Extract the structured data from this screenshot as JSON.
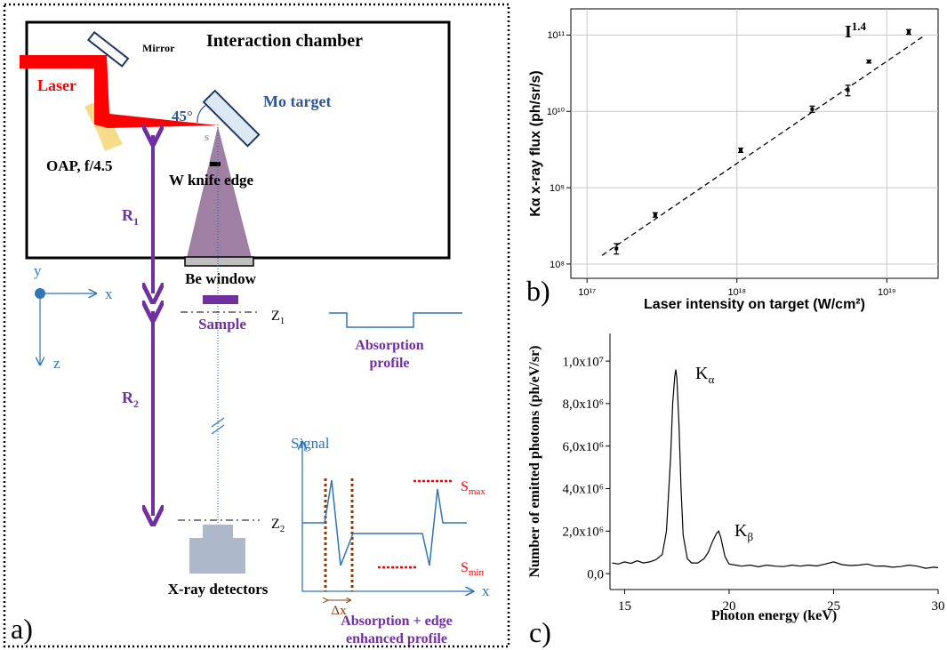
{
  "diagram": {
    "title": "Interaction chamber",
    "mirror": "Mirror",
    "laser": "Laser",
    "target": "Mo target",
    "angle": "45°",
    "source": "s",
    "oap": "OAP, f/4.5",
    "knife": "W knife edge",
    "r1": {
      "text": "R",
      "sub": "1"
    },
    "r2": {
      "text": "R",
      "sub": "2"
    },
    "window": "Be window",
    "sample": "Sample",
    "z1": {
      "text": "Z",
      "sub": "1"
    },
    "z2": {
      "text": "Z",
      "sub": "2"
    },
    "profile": [
      "Absorption",
      "profile"
    ],
    "axis_y": "y",
    "axis_x": "x",
    "axis_z": "z",
    "signal": "Signal",
    "signal_x": "x",
    "smax": {
      "text": "S",
      "sub": "max"
    },
    "smin": {
      "text": "S",
      "sub": "min"
    },
    "detectors": "X-ray detectors",
    "dx": "Δx",
    "enhanced": [
      "Absorption + edge",
      "enhanced profile"
    ],
    "panel_label": "a)"
  },
  "chart_data": [
    {
      "type": "scatter",
      "panel_label": "b)",
      "xlabel": "Laser intensity on target (W/cm²)",
      "ylabel": "Kα x-ray flux (ph/sr/s)",
      "log_x": true,
      "log_y": true,
      "grid": true,
      "color": "#000000",
      "xlim": [
        7.8e+16,
        2.2e+19
      ],
      "ylim": [
        65000000.0,
        220000000000.0
      ],
      "xticks": [
        {
          "value": 1e+17,
          "label": "10¹⁷"
        },
        {
          "value": 1e+18,
          "label": "10¹⁸"
        },
        {
          "value": 1e+19,
          "label": "10¹⁹"
        }
      ],
      "yticks": [
        {
          "value": 100000000.0,
          "label": "10⁸"
        },
        {
          "value": 1000000000.0,
          "label": "10⁹"
        },
        {
          "value": 10000000000.0,
          "label": "10¹⁰"
        },
        {
          "value": 100000000000.0,
          "label": "10¹¹"
        }
      ],
      "x": [
        1.57e+17,
        2.85e+17,
        1.06e+18,
        3.18e+18,
        5.5e+18,
        7.6e+18,
        1.4e+19
      ],
      "values": [
        160000000.0,
        440000000.0,
        3100000000.0,
        10700000000.0,
        19000000000.0,
        45000000000.0,
        110000000000.0
      ],
      "errors": [
        25000000.0,
        30000000.0,
        200000000.0,
        1000000000.0,
        3000000000.0,
        2000000000.0,
        8000000000.0
      ],
      "fit": {
        "x": [
          1.26e+17,
          1.78e+19
        ],
        "values": [
          130000000.0,
          98000000000.0
        ]
      },
      "annotation": {
        "text": "I",
        "sup": "1.4"
      }
    },
    {
      "type": "line",
      "panel_label": "c)",
      "xlabel": "Photon energy (keV)",
      "ylabel": "Number of emitted photons (ph/eV/sr)",
      "color": "#000000",
      "xlim": [
        14.3,
        30
      ],
      "ylim": [
        -750000,
        11300000
      ],
      "xticks": [
        15,
        20,
        25,
        30
      ],
      "yticks": [
        {
          "value": 0,
          "label": "0,0"
        },
        {
          "value": 2000000,
          "label": "2,0x10⁶"
        },
        {
          "value": 4000000,
          "label": "4,0x10⁶"
        },
        {
          "value": 6000000,
          "label": "6,0x10⁶"
        },
        {
          "value": 8000000,
          "label": "8,0x10⁶"
        },
        {
          "value": 10000000,
          "label": "1,0x10⁷"
        }
      ],
      "x": [
        14.4,
        14.7,
        15.0,
        15.3,
        15.6,
        15.9,
        16.2,
        16.5,
        16.8,
        17.0,
        17.2,
        17.3,
        17.4,
        17.45,
        17.5,
        17.6,
        17.7,
        17.8,
        18.0,
        18.2,
        18.5,
        18.8,
        19.0,
        19.2,
        19.4,
        19.5,
        19.6,
        19.8,
        20.0,
        20.3,
        20.6,
        21.0,
        21.4,
        21.8,
        22.2,
        22.6,
        23.0,
        23.4,
        23.8,
        24.2,
        24.6,
        25.0,
        25.4,
        25.8,
        26.2,
        26.6,
        27.0,
        27.4,
        27.8,
        28.2,
        28.6,
        29.0,
        29.4,
        29.8,
        30.0
      ],
      "values": [
        500000,
        450000,
        550000,
        480000,
        600000,
        500000,
        550000,
        650000,
        900000,
        2000000,
        5500000,
        8000000,
        9300000,
        9600000,
        9200000,
        7000000,
        4000000,
        1800000,
        700000,
        500000,
        500000,
        700000,
        1000000,
        1500000,
        1900000,
        2000000,
        1700000,
        800000,
        450000,
        400000,
        350000,
        400000,
        320000,
        400000,
        350000,
        330000,
        400000,
        350000,
        400000,
        360000,
        450000,
        550000,
        420000,
        380000,
        400000,
        450000,
        350000,
        360000,
        300000,
        330000,
        400000,
        350000,
        250000,
        300000,
        280000
      ],
      "annotations": [
        {
          "text": "K",
          "sub": "α"
        },
        {
          "text": "K",
          "sub": "β"
        }
      ]
    }
  ]
}
